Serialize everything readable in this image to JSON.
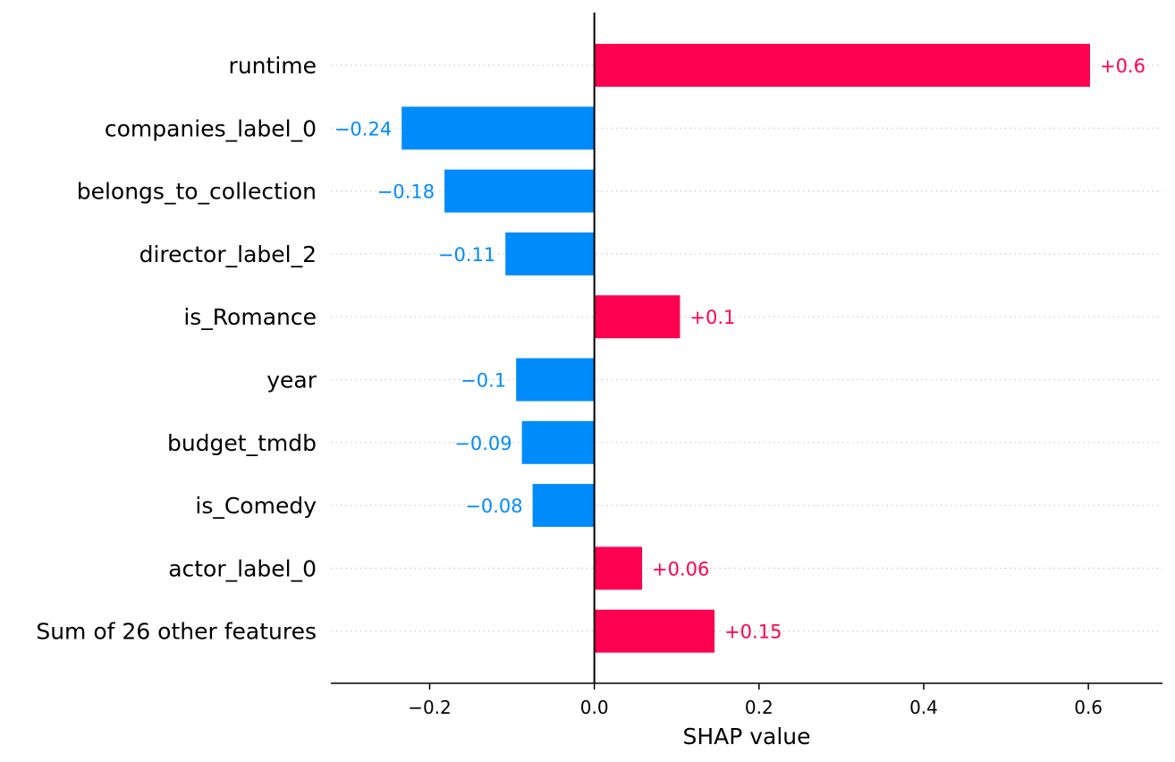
{
  "chart_data": {
    "type": "bar",
    "orientation": "horizontal",
    "xlabel": "SHAP value",
    "xlim": [
      -0.32,
      0.69
    ],
    "xticks": [
      -0.2,
      0.0,
      0.2,
      0.4,
      0.6
    ],
    "xtick_labels": [
      "−0.2",
      "0.0",
      "0.2",
      "0.4",
      "0.6"
    ],
    "grid": "horizontal dotted guides per row",
    "colors": {
      "positive": "#ff0051",
      "negative": "#008bfb",
      "axis": "#000000",
      "guide": "#cccccc"
    },
    "categories": [
      "runtime",
      "companies_label_0",
      "belongs_to_collection",
      "director_label_2",
      "is_Romance",
      "year",
      "budget_tmdb",
      "is_Comedy",
      "actor_label_0",
      "Sum of 26 other features"
    ],
    "values": [
      0.6,
      -0.24,
      -0.18,
      -0.11,
      0.1,
      -0.1,
      -0.09,
      -0.08,
      0.06,
      0.15
    ],
    "bar_values": [
      0.602,
      -0.234,
      -0.182,
      -0.108,
      0.104,
      -0.095,
      -0.088,
      -0.075,
      0.058,
      0.146
    ],
    "value_labels": [
      "+0.6",
      "−0.24",
      "−0.18",
      "−0.11",
      "+0.1",
      "−0.1",
      "−0.09",
      "−0.08",
      "+0.06",
      "+0.15"
    ]
  }
}
